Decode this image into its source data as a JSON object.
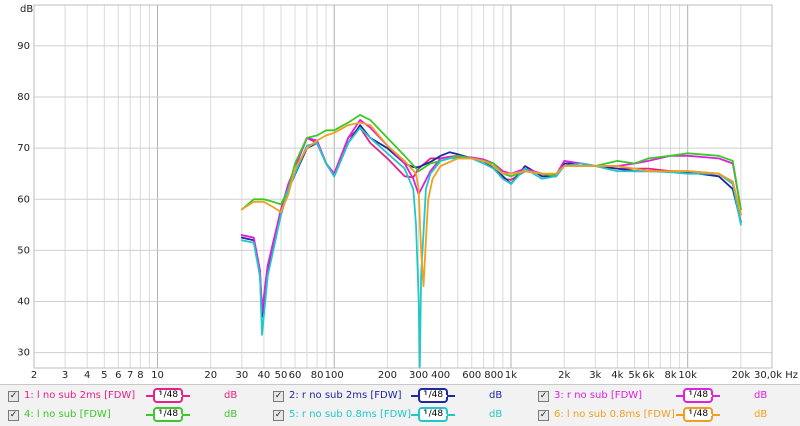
{
  "chart_data": {
    "type": "line",
    "title": "",
    "ylabel": "dB",
    "xlabel": "Hz",
    "x_scale": "log",
    "xlim": [
      2,
      30000
    ],
    "ylim": [
      27,
      98
    ],
    "grid": true,
    "x_ticks": [
      {
        "v": 2,
        "label": "2"
      },
      {
        "v": 3,
        "label": "3"
      },
      {
        "v": 4,
        "label": "4"
      },
      {
        "v": 5,
        "label": "5"
      },
      {
        "v": 6,
        "label": "6"
      },
      {
        "v": 7,
        "label": "7"
      },
      {
        "v": 8,
        "label": "8"
      },
      {
        "v": 10,
        "label": "10"
      },
      {
        "v": 20,
        "label": "20"
      },
      {
        "v": 30,
        "label": "30"
      },
      {
        "v": 40,
        "label": "40"
      },
      {
        "v": 50,
        "label": "50"
      },
      {
        "v": 60,
        "label": "60"
      },
      {
        "v": 80,
        "label": "80"
      },
      {
        "v": 100,
        "label": "100"
      },
      {
        "v": 200,
        "label": "200"
      },
      {
        "v": 300,
        "label": "300"
      },
      {
        "v": 400,
        "label": "400"
      },
      {
        "v": 600,
        "label": "600"
      },
      {
        "v": 800,
        "label": "800"
      },
      {
        "v": 1000,
        "label": "1k"
      },
      {
        "v": 2000,
        "label": "2k"
      },
      {
        "v": 3000,
        "label": "3k"
      },
      {
        "v": 4000,
        "label": "4k"
      },
      {
        "v": 5000,
        "label": "5k"
      },
      {
        "v": 6000,
        "label": "6k"
      },
      {
        "v": 8000,
        "label": "8k"
      },
      {
        "v": 10000,
        "label": "10k"
      },
      {
        "v": 20000,
        "label": "20k"
      },
      {
        "v": 30000,
        "label": "30,0k Hz"
      }
    ],
    "y_ticks": [
      30,
      40,
      50,
      60,
      70,
      80,
      90
    ],
    "y_unit_label": "dB",
    "series": [
      {
        "name": "1: l no sub 2ms [FDW]",
        "color": "#e8208c",
        "x": [
          30,
          35,
          38,
          39,
          42,
          50,
          55,
          70,
          80,
          90,
          100,
          120,
          140,
          160,
          200,
          250,
          280,
          300,
          350,
          400,
          450,
          500,
          600,
          700,
          800,
          900,
          1000,
          1200,
          1500,
          1800,
          2000,
          2500,
          3000,
          4000,
          5000,
          6000,
          8000,
          10000,
          15000,
          18000,
          20000
        ],
        "y": [
          53,
          52.5,
          46,
          38,
          47,
          58,
          63,
          72,
          71,
          67,
          65,
          72,
          74,
          71,
          68,
          64.5,
          64.3,
          66,
          68,
          68,
          68.3,
          68.5,
          68,
          67.5,
          66,
          64,
          63.8,
          65.5,
          65,
          64.5,
          67,
          67,
          66.5,
          66,
          66,
          66,
          65.5,
          65.5,
          65,
          63,
          57
        ]
      },
      {
        "name": "2: r no sub 2ms [FDW]",
        "color": "#1e28a0",
        "x": [
          30,
          35,
          38,
          39,
          42,
          50,
          55,
          70,
          80,
          90,
          100,
          120,
          140,
          160,
          200,
          250,
          280,
          300,
          350,
          400,
          450,
          500,
          600,
          700,
          800,
          900,
          1000,
          1200,
          1500,
          1800,
          2000,
          2500,
          3000,
          4000,
          5000,
          6000,
          8000,
          10000,
          15000,
          18000,
          20000
        ],
        "y": [
          52.5,
          52,
          45,
          37,
          46,
          57,
          62,
          70,
          71,
          67,
          64.5,
          71,
          74.5,
          72,
          70,
          67,
          66.3,
          66.3,
          67.3,
          68.5,
          69.2,
          68.8,
          68,
          67.5,
          66,
          64.5,
          63,
          66.5,
          64.5,
          64.5,
          67,
          67,
          66.5,
          66,
          65.5,
          65.5,
          65.5,
          65.3,
          64.5,
          62,
          55.5
        ]
      },
      {
        "name": "3: r no sub [FDW]",
        "color": "#e020e0",
        "x": [
          30,
          35,
          38,
          39,
          42,
          50,
          55,
          70,
          80,
          90,
          100,
          120,
          140,
          160,
          200,
          250,
          280,
          300,
          350,
          400,
          450,
          500,
          600,
          700,
          800,
          900,
          1000,
          1200,
          1500,
          1800,
          2000,
          2500,
          3000,
          4000,
          5000,
          6000,
          8000,
          10000,
          15000,
          18000,
          20000
        ],
        "y": [
          53,
          52.5,
          46,
          38,
          47,
          58,
          63,
          72,
          71.5,
          67,
          65,
          72,
          75.5,
          74,
          70.5,
          67,
          64,
          61,
          65.5,
          68,
          68.3,
          68.3,
          68.2,
          67.8,
          67,
          65.5,
          65,
          66,
          65,
          64.8,
          67.5,
          67,
          66.5,
          66.5,
          67,
          67.5,
          68.5,
          68.5,
          68,
          67,
          58
        ]
      },
      {
        "name": "4: l no sub [FDW]",
        "color": "#3cc828",
        "x": [
          30,
          35,
          38,
          40,
          45,
          50,
          55,
          60,
          70,
          80,
          90,
          100,
          120,
          140,
          160,
          200,
          250,
          300,
          350,
          400,
          500,
          600,
          700,
          800,
          900,
          1000,
          1200,
          1500,
          1800,
          2000,
          2500,
          3000,
          4000,
          5000,
          6000,
          8000,
          10000,
          15000,
          18000,
          20000
        ],
        "y": [
          58,
          60,
          60,
          60,
          59.5,
          59,
          62,
          67,
          72,
          72.5,
          73.5,
          73.5,
          75,
          76.5,
          75.5,
          72,
          68.5,
          65.5,
          67,
          67.5,
          68.5,
          68,
          67.5,
          67,
          65,
          64.5,
          65.5,
          65,
          64.5,
          66.5,
          66.5,
          66.5,
          67.5,
          67,
          68,
          68.5,
          69,
          68.5,
          67.5,
          58
        ]
      },
      {
        "name": "5: r no sub 0.8ms [FDW]",
        "color": "#20c8c8",
        "x": [
          30,
          35,
          38,
          39,
          42,
          50,
          55,
          70,
          80,
          90,
          100,
          120,
          140,
          160,
          200,
          250,
          280,
          290,
          300,
          305,
          310,
          330,
          350,
          400,
          450,
          500,
          600,
          700,
          800,
          900,
          1000,
          1200,
          1500,
          1800,
          2000,
          2500,
          3000,
          4000,
          5000,
          6000,
          8000,
          10000,
          15000,
          18000,
          20000
        ],
        "y": [
          52,
          51.5,
          45,
          33.5,
          45,
          57,
          62,
          70.5,
          71,
          67,
          64.5,
          71,
          74,
          72,
          69,
          66,
          62,
          55,
          41,
          27,
          45,
          62,
          65,
          67.5,
          68,
          68,
          68,
          67,
          66,
          64,
          63,
          66,
          64,
          64.5,
          66.5,
          67,
          66.5,
          65.5,
          65.5,
          65.5,
          65.3,
          65,
          65,
          63,
          55
        ]
      },
      {
        "name": "6: l no sub 0.8ms [FDW]",
        "color": "#f0a020",
        "x": [
          30,
          35,
          38,
          40,
          45,
          50,
          55,
          60,
          70,
          80,
          90,
          100,
          120,
          140,
          160,
          200,
          250,
          290,
          300,
          310,
          320,
          330,
          340,
          360,
          400,
          500,
          600,
          700,
          800,
          900,
          1000,
          1200,
          1500,
          1800,
          2000,
          2500,
          3000,
          4000,
          5000,
          6000,
          8000,
          10000,
          15000,
          18000,
          20000
        ],
        "y": [
          58,
          59.5,
          59.5,
          59.5,
          58.5,
          57.5,
          61,
          66,
          70,
          71.5,
          72.5,
          73,
          74.5,
          75,
          74.5,
          70.5,
          67.5,
          65,
          62,
          50,
          43,
          52,
          60,
          64,
          66.5,
          68,
          68,
          67.5,
          66.5,
          65,
          65,
          65.5,
          65,
          65,
          66.5,
          66.5,
          66.5,
          66.5,
          66,
          65.5,
          65.5,
          65.5,
          65,
          63.5,
          57
        ]
      }
    ]
  },
  "legend": [
    {
      "label": "1: l no sub 2ms [FDW]",
      "smoothing": "1/48",
      "unit": "dB",
      "color": "#e8208c",
      "checked": true
    },
    {
      "label": "2: r no sub 2ms [FDW]",
      "smoothing": "1/48",
      "unit": "dB",
      "color": "#1e28a0",
      "checked": true
    },
    {
      "label": "3: r no sub [FDW]",
      "smoothing": "1/48",
      "unit": "dB",
      "color": "#e020e0",
      "checked": true
    },
    {
      "label": "4: l no sub [FDW]",
      "smoothing": "1/48",
      "unit": "dB",
      "color": "#3cc828",
      "checked": true
    },
    {
      "label": "5: r no sub 0.8ms [FDW]",
      "smoothing": "1/48",
      "unit": "dB",
      "color": "#20c8c8",
      "checked": true
    },
    {
      "label": "6: l no sub 0.8ms [FDW]",
      "smoothing": "1/48",
      "unit": "dB",
      "color": "#f0a020",
      "checked": true
    }
  ]
}
